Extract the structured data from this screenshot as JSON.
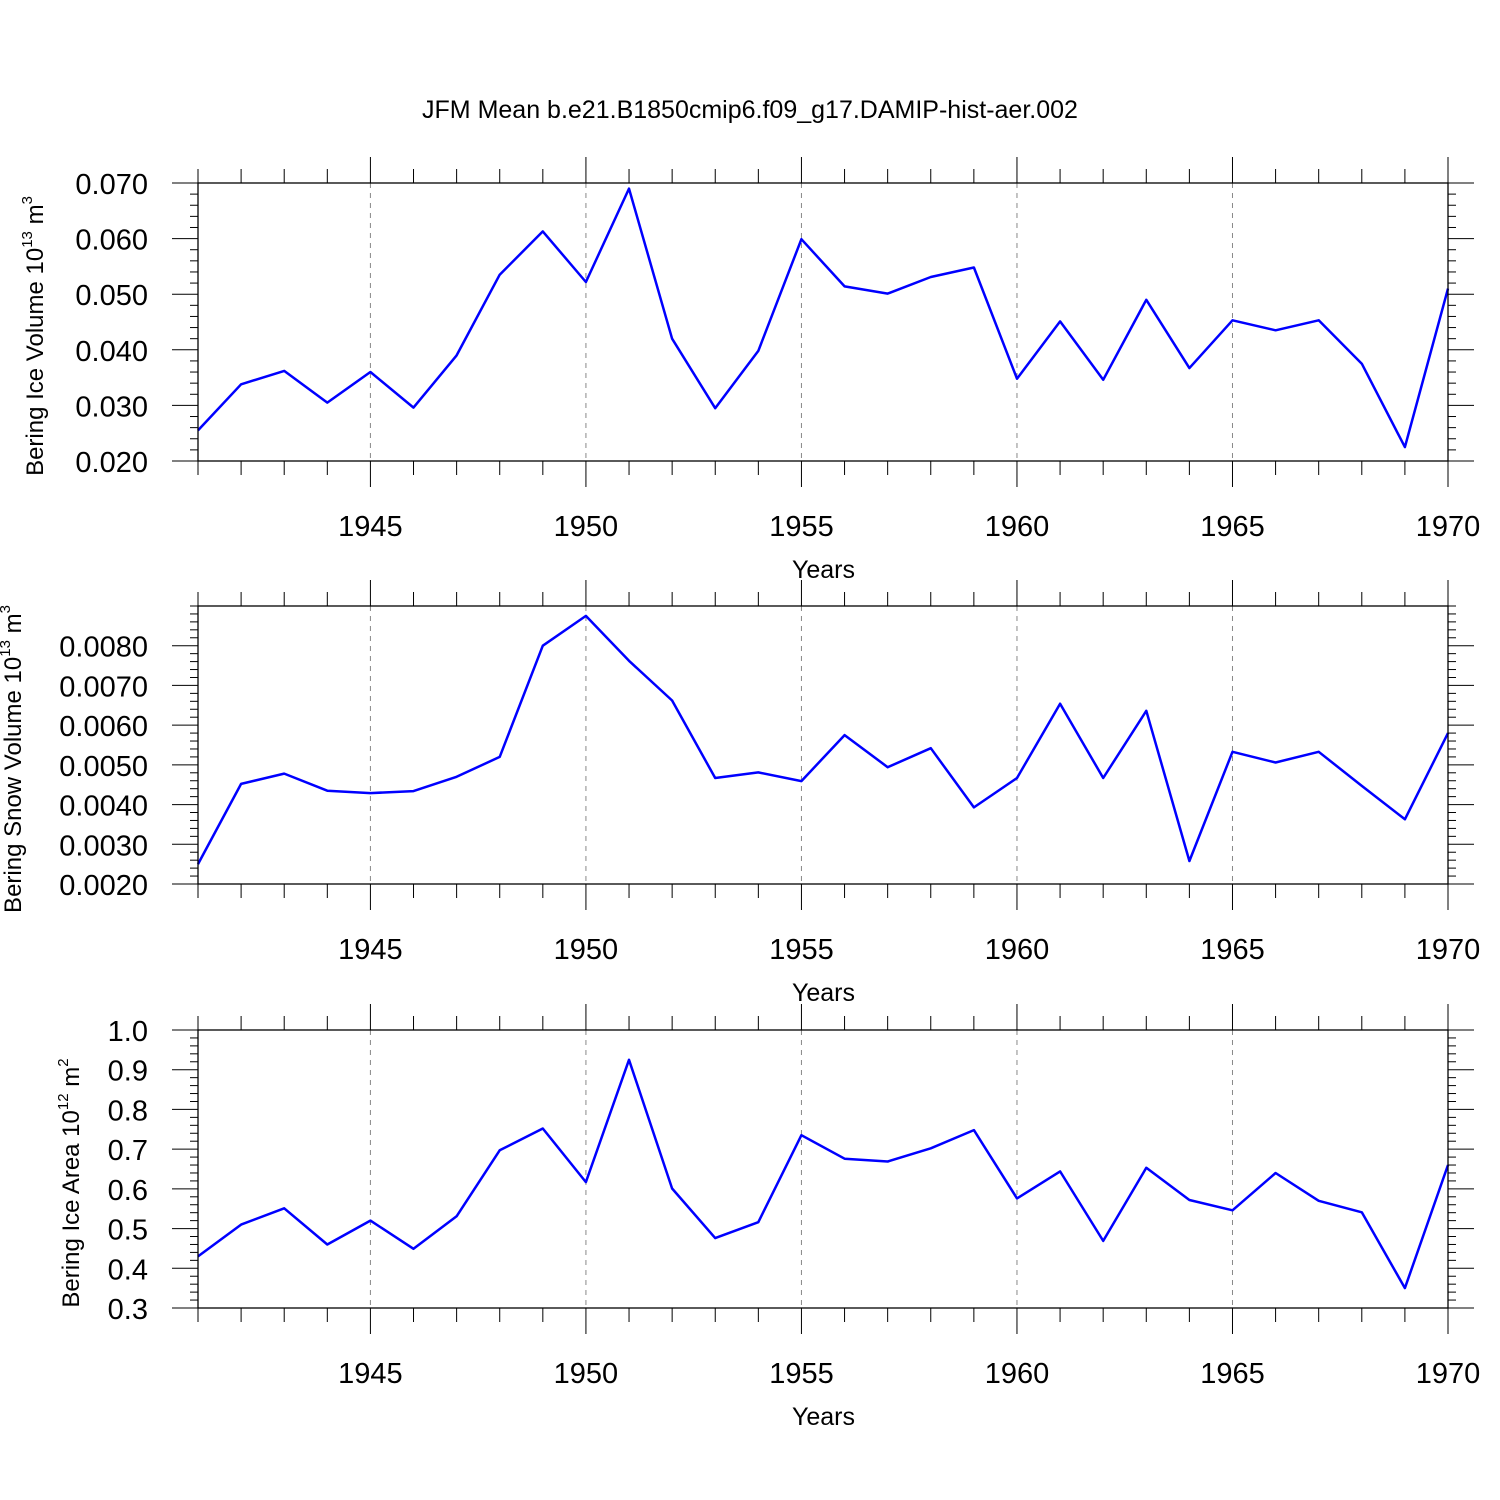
{
  "figure": {
    "title": "JFM Mean b.e21.B1850cmip6.f09_g17.DAMIP-hist-aer.002",
    "line_color": "#0000ff",
    "axis_color": "#000000",
    "grid_color": "#888888"
  },
  "chart_data": [
    {
      "type": "line",
      "title": "JFM Mean b.e21.B1850cmip6.f09_g17.DAMIP-hist-aer.002",
      "xlabel": "Years",
      "ylabel_parts": {
        "base": "Bering Ice Volume 10",
        "exp1": "13",
        "unit": " m",
        "exp2": "3"
      },
      "xlim": [
        1941,
        1970
      ],
      "ylim": [
        0.02,
        0.07
      ],
      "xticks": [
        1945,
        1950,
        1955,
        1960,
        1965,
        1970
      ],
      "yticks": [
        0.02,
        0.03,
        0.04,
        0.05,
        0.06,
        0.07
      ],
      "ytick_labels": [
        "0.020",
        "0.030",
        "0.040",
        "0.050",
        "0.060",
        "0.070"
      ],
      "ytick_minor_step": 0.002,
      "grid": "x-dashed",
      "x": [
        1941,
        1942,
        1943,
        1944,
        1945,
        1946,
        1947,
        1948,
        1949,
        1950,
        1951,
        1952,
        1953,
        1954,
        1955,
        1956,
        1957,
        1958,
        1959,
        1960,
        1961,
        1962,
        1963,
        1964,
        1965,
        1966,
        1967,
        1968,
        1969,
        1970
      ],
      "series": [
        {
          "name": "Bering Ice Volume",
          "values": [
            0.0255,
            0.0338,
            0.0362,
            0.0305,
            0.036,
            0.0296,
            0.039,
            0.0535,
            0.0613,
            0.0522,
            0.069,
            0.042,
            0.0295,
            0.0398,
            0.0599,
            0.0514,
            0.0501,
            0.0531,
            0.0548,
            0.0348,
            0.0451,
            0.0346,
            0.049,
            0.0367,
            0.0453,
            0.0435,
            0.0453,
            0.0375,
            0.0225,
            0.051
          ]
        }
      ]
    },
    {
      "type": "line",
      "xlabel": "Years",
      "ylabel_parts": {
        "base": "Bering Snow Volume 10",
        "exp1": "13",
        "unit": " m",
        "exp2": "3"
      },
      "xlim": [
        1941,
        1970
      ],
      "ylim": [
        0.002,
        0.009
      ],
      "xticks": [
        1945,
        1950,
        1955,
        1960,
        1965,
        1970
      ],
      "yticks": [
        0.002,
        0.003,
        0.004,
        0.005,
        0.006,
        0.007,
        0.008
      ],
      "ytick_labels": [
        "0.0020",
        "0.0030",
        "0.0040",
        "0.0050",
        "0.0060",
        "0.0070",
        "0.0080"
      ],
      "ytick_minor_step": 0.0002,
      "grid": "x-dashed",
      "x": [
        1941,
        1942,
        1943,
        1944,
        1945,
        1946,
        1947,
        1948,
        1949,
        1950,
        1951,
        1952,
        1953,
        1954,
        1955,
        1956,
        1957,
        1958,
        1959,
        1960,
        1961,
        1962,
        1963,
        1964,
        1965,
        1966,
        1967,
        1968,
        1969,
        1970
      ],
      "series": [
        {
          "name": "Bering Snow Volume",
          "values": [
            0.0025,
            0.00452,
            0.00478,
            0.00435,
            0.00429,
            0.00434,
            0.0047,
            0.0052,
            0.008,
            0.00875,
            0.00762,
            0.00662,
            0.00467,
            0.00481,
            0.00459,
            0.00575,
            0.00494,
            0.00542,
            0.00393,
            0.00467,
            0.00654,
            0.00467,
            0.00636,
            0.00258,
            0.00533,
            0.00506,
            0.00533,
            0.00447,
            0.00363,
            0.0058
          ]
        }
      ]
    },
    {
      "type": "line",
      "xlabel": "Years",
      "ylabel_parts": {
        "base": "Bering Ice Area 10",
        "exp1": "12",
        "unit": " m",
        "exp2": "2"
      },
      "xlim": [
        1941,
        1970
      ],
      "ylim": [
        0.3,
        1.0
      ],
      "xticks": [
        1945,
        1950,
        1955,
        1960,
        1965,
        1970
      ],
      "yticks": [
        0.3,
        0.4,
        0.5,
        0.6,
        0.7,
        0.8,
        0.9,
        1.0
      ],
      "ytick_labels": [
        "0.3",
        "0.4",
        "0.5",
        "0.6",
        "0.7",
        "0.8",
        "0.9",
        "1.0"
      ],
      "ytick_minor_step": 0.02,
      "grid": "x-dashed",
      "x": [
        1941,
        1942,
        1943,
        1944,
        1945,
        1946,
        1947,
        1948,
        1949,
        1950,
        1951,
        1952,
        1953,
        1954,
        1955,
        1956,
        1957,
        1958,
        1959,
        1960,
        1961,
        1962,
        1963,
        1964,
        1965,
        1966,
        1967,
        1968,
        1969,
        1970
      ],
      "series": [
        {
          "name": "Bering Ice Area",
          "values": [
            0.43,
            0.51,
            0.551,
            0.46,
            0.52,
            0.449,
            0.531,
            0.697,
            0.752,
            0.617,
            0.925,
            0.601,
            0.476,
            0.516,
            0.735,
            0.676,
            0.669,
            0.702,
            0.748,
            0.576,
            0.644,
            0.469,
            0.653,
            0.572,
            0.546,
            0.64,
            0.57,
            0.541,
            0.35,
            0.66
          ]
        }
      ]
    }
  ]
}
